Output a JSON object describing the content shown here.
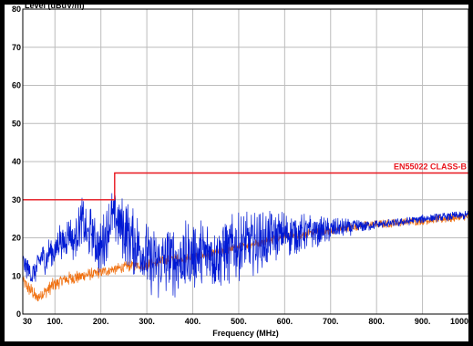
{
  "chart_data": {
    "type": "line",
    "ylabel": "Level (dBuV/m)",
    "xlabel": "Frequency (MHz)",
    "xlim": [
      30,
      1000
    ],
    "ylim": [
      0,
      80
    ],
    "grid": true,
    "x_ticks": [
      {
        "value": 30,
        "label": "30"
      },
      {
        "value": 100,
        "label": "100."
      },
      {
        "value": 200,
        "label": "200."
      },
      {
        "value": 300,
        "label": "300."
      },
      {
        "value": 400,
        "label": "400."
      },
      {
        "value": 500,
        "label": "500."
      },
      {
        "value": 600,
        "label": "600."
      },
      {
        "value": 700,
        "label": "700."
      },
      {
        "value": 800,
        "label": "800."
      },
      {
        "value": 900,
        "label": "900."
      },
      {
        "value": 1000,
        "label": "1000"
      }
    ],
    "y_ticks": [
      0,
      10,
      20,
      30,
      40,
      50,
      60,
      70,
      80
    ],
    "limit": {
      "label": "EN55022 CLASS-B",
      "color": "#e8161e",
      "points": [
        [
          30,
          30
        ],
        [
          230,
          30
        ],
        [
          230,
          37
        ],
        [
          1000,
          37
        ]
      ]
    },
    "series": [
      {
        "color": "#0019d4",
        "points": [
          [
            30,
            14
          ],
          [
            40,
            12
          ],
          [
            50,
            10
          ],
          [
            60,
            12
          ],
          [
            70,
            15
          ],
          [
            80,
            14
          ],
          [
            90,
            17
          ],
          [
            100,
            16
          ],
          [
            110,
            20
          ],
          [
            120,
            18
          ],
          [
            130,
            22
          ],
          [
            140,
            19
          ],
          [
            150,
            22
          ],
          [
            160,
            25
          ],
          [
            170,
            20
          ],
          [
            180,
            22
          ],
          [
            190,
            18
          ],
          [
            200,
            17
          ],
          [
            210,
            21
          ],
          [
            220,
            24
          ],
          [
            230,
            26
          ],
          [
            240,
            24
          ],
          [
            250,
            22
          ],
          [
            260,
            21
          ],
          [
            270,
            19
          ],
          [
            280,
            18
          ],
          [
            290,
            16
          ],
          [
            300,
            15
          ],
          [
            310,
            13
          ],
          [
            320,
            13
          ],
          [
            340,
            14
          ],
          [
            360,
            14
          ],
          [
            380,
            14.5
          ],
          [
            400,
            15
          ],
          [
            450,
            16
          ],
          [
            500,
            17.5
          ],
          [
            550,
            19
          ],
          [
            600,
            21
          ],
          [
            650,
            21.5
          ],
          [
            700,
            22
          ],
          [
            750,
            23
          ],
          [
            800,
            23.5
          ],
          [
            850,
            24
          ],
          [
            900,
            25
          ],
          [
            950,
            25.5
          ],
          [
            1000,
            26
          ]
        ],
        "noise": [
          3,
          5,
          8,
          10,
          10,
          9,
          6,
          3,
          1.2,
          1.2,
          1.2
        ]
      },
      {
        "color": "#f07010",
        "points": [
          [
            30,
            9
          ],
          [
            40,
            7
          ],
          [
            50,
            6
          ],
          [
            60,
            4
          ],
          [
            70,
            5
          ],
          [
            80,
            6
          ],
          [
            90,
            7
          ],
          [
            100,
            8
          ],
          [
            120,
            9
          ],
          [
            140,
            9.5
          ],
          [
            160,
            10
          ],
          [
            180,
            10.5
          ],
          [
            200,
            11
          ],
          [
            220,
            11.5
          ],
          [
            240,
            12
          ],
          [
            260,
            12.5
          ],
          [
            280,
            13
          ],
          [
            300,
            13
          ],
          [
            320,
            13.5
          ],
          [
            340,
            14
          ],
          [
            360,
            14.5
          ],
          [
            380,
            14.5
          ],
          [
            400,
            15
          ],
          [
            450,
            16
          ],
          [
            500,
            17.5
          ],
          [
            550,
            19
          ],
          [
            600,
            20.5
          ],
          [
            650,
            21
          ],
          [
            700,
            22
          ],
          [
            750,
            23
          ],
          [
            800,
            23.5
          ],
          [
            850,
            24
          ],
          [
            900,
            24.5
          ],
          [
            950,
            25
          ],
          [
            1000,
            25.5
          ]
        ],
        "noise": [
          2,
          2,
          1.5,
          1.5,
          1.2,
          1.2,
          1.2,
          1.2,
          1.2,
          1.2,
          1.2
        ]
      }
    ]
  }
}
